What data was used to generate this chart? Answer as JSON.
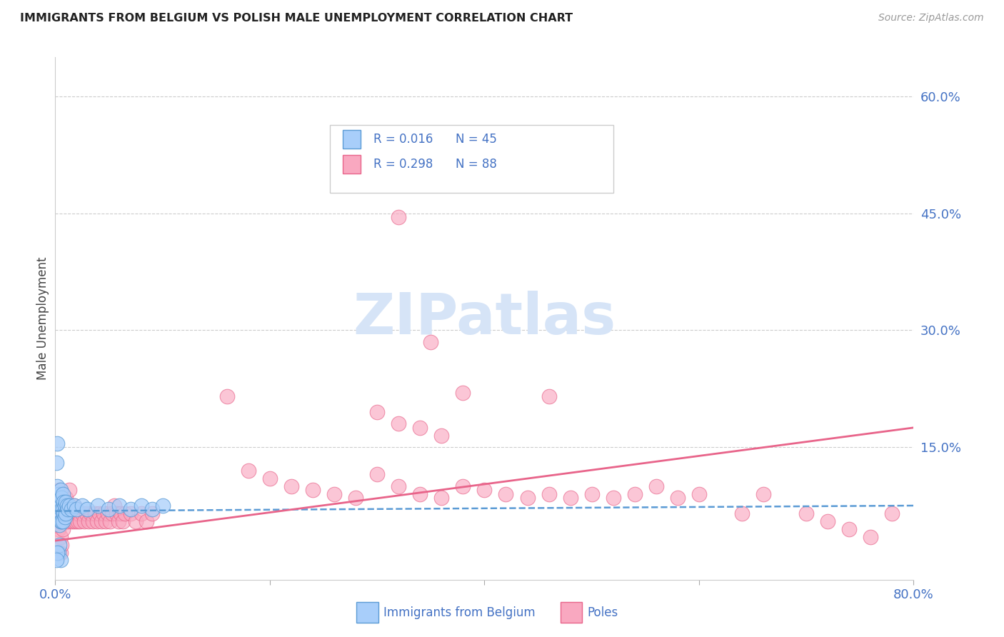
{
  "title": "IMMIGRANTS FROM BELGIUM VS POLISH MALE UNEMPLOYMENT CORRELATION CHART",
  "source": "Source: ZipAtlas.com",
  "ylabel": "Male Unemployment",
  "legend_label1": "Immigrants from Belgium",
  "legend_label2": "Poles",
  "xlim": [
    0.0,
    0.8
  ],
  "ylim": [
    -0.02,
    0.65
  ],
  "yticks": [
    0.15,
    0.3,
    0.45,
    0.6
  ],
  "ytick_labels": [
    "15.0%",
    "30.0%",
    "45.0%",
    "60.0%"
  ],
  "xticks": [
    0.0,
    0.2,
    0.4,
    0.6,
    0.8
  ],
  "xtick_labels": [
    "0.0%",
    "",
    "",
    "",
    "80.0%"
  ],
  "color_blue": "#A8CEFA",
  "color_pink": "#F9A8C0",
  "color_line_blue": "#5B9BD5",
  "color_line_pink": "#E8648A",
  "color_axis_label": "#4472C4",
  "watermark_color": "#D6E4F7",
  "blue_points": [
    [
      0.001,
      0.13
    ],
    [
      0.002,
      0.1
    ],
    [
      0.002,
      0.085
    ],
    [
      0.003,
      0.09
    ],
    [
      0.003,
      0.075
    ],
    [
      0.003,
      0.06
    ],
    [
      0.004,
      0.08
    ],
    [
      0.004,
      0.065
    ],
    [
      0.004,
      0.05
    ],
    [
      0.005,
      0.095
    ],
    [
      0.005,
      0.075
    ],
    [
      0.005,
      0.055
    ],
    [
      0.006,
      0.085
    ],
    [
      0.006,
      0.07
    ],
    [
      0.006,
      0.055
    ],
    [
      0.007,
      0.09
    ],
    [
      0.007,
      0.07
    ],
    [
      0.007,
      0.055
    ],
    [
      0.008,
      0.08
    ],
    [
      0.008,
      0.065
    ],
    [
      0.009,
      0.075
    ],
    [
      0.009,
      0.06
    ],
    [
      0.01,
      0.08
    ],
    [
      0.01,
      0.065
    ],
    [
      0.011,
      0.075
    ],
    [
      0.012,
      0.07
    ],
    [
      0.013,
      0.075
    ],
    [
      0.015,
      0.07
    ],
    [
      0.018,
      0.075
    ],
    [
      0.02,
      0.07
    ],
    [
      0.025,
      0.075
    ],
    [
      0.03,
      0.07
    ],
    [
      0.04,
      0.075
    ],
    [
      0.05,
      0.07
    ],
    [
      0.06,
      0.075
    ],
    [
      0.07,
      0.07
    ],
    [
      0.08,
      0.075
    ],
    [
      0.09,
      0.07
    ],
    [
      0.1,
      0.075
    ],
    [
      0.003,
      0.015
    ],
    [
      0.004,
      0.025
    ],
    [
      0.005,
      0.005
    ],
    [
      0.002,
      0.015
    ],
    [
      0.001,
      0.005
    ],
    [
      0.002,
      0.155
    ]
  ],
  "pink_points": [
    [
      0.002,
      0.08
    ],
    [
      0.003,
      0.065
    ],
    [
      0.003,
      0.045
    ],
    [
      0.004,
      0.095
    ],
    [
      0.005,
      0.075
    ],
    [
      0.005,
      0.055
    ],
    [
      0.005,
      0.035
    ],
    [
      0.006,
      0.08
    ],
    [
      0.007,
      0.065
    ],
    [
      0.007,
      0.045
    ],
    [
      0.008,
      0.07
    ],
    [
      0.009,
      0.06
    ],
    [
      0.01,
      0.085
    ],
    [
      0.011,
      0.055
    ],
    [
      0.012,
      0.065
    ],
    [
      0.013,
      0.095
    ],
    [
      0.015,
      0.055
    ],
    [
      0.016,
      0.065
    ],
    [
      0.017,
      0.055
    ],
    [
      0.018,
      0.075
    ],
    [
      0.019,
      0.055
    ],
    [
      0.02,
      0.065
    ],
    [
      0.021,
      0.055
    ],
    [
      0.022,
      0.065
    ],
    [
      0.023,
      0.055
    ],
    [
      0.025,
      0.065
    ],
    [
      0.027,
      0.055
    ],
    [
      0.029,
      0.065
    ],
    [
      0.031,
      0.055
    ],
    [
      0.033,
      0.065
    ],
    [
      0.035,
      0.055
    ],
    [
      0.037,
      0.065
    ],
    [
      0.039,
      0.055
    ],
    [
      0.041,
      0.065
    ],
    [
      0.043,
      0.055
    ],
    [
      0.045,
      0.065
    ],
    [
      0.047,
      0.055
    ],
    [
      0.049,
      0.065
    ],
    [
      0.051,
      0.055
    ],
    [
      0.053,
      0.065
    ],
    [
      0.055,
      0.075
    ],
    [
      0.057,
      0.065
    ],
    [
      0.059,
      0.055
    ],
    [
      0.061,
      0.065
    ],
    [
      0.063,
      0.055
    ],
    [
      0.065,
      0.065
    ],
    [
      0.07,
      0.065
    ],
    [
      0.075,
      0.055
    ],
    [
      0.08,
      0.065
    ],
    [
      0.085,
      0.055
    ],
    [
      0.09,
      0.065
    ],
    [
      0.16,
      0.215
    ],
    [
      0.18,
      0.12
    ],
    [
      0.2,
      0.11
    ],
    [
      0.22,
      0.1
    ],
    [
      0.24,
      0.095
    ],
    [
      0.26,
      0.09
    ],
    [
      0.28,
      0.085
    ],
    [
      0.3,
      0.115
    ],
    [
      0.32,
      0.1
    ],
    [
      0.34,
      0.09
    ],
    [
      0.36,
      0.085
    ],
    [
      0.38,
      0.1
    ],
    [
      0.4,
      0.095
    ],
    [
      0.42,
      0.09
    ],
    [
      0.44,
      0.085
    ],
    [
      0.46,
      0.09
    ],
    [
      0.48,
      0.085
    ],
    [
      0.5,
      0.09
    ],
    [
      0.52,
      0.085
    ],
    [
      0.54,
      0.09
    ],
    [
      0.56,
      0.1
    ],
    [
      0.58,
      0.085
    ],
    [
      0.6,
      0.09
    ],
    [
      0.64,
      0.065
    ],
    [
      0.66,
      0.09
    ],
    [
      0.7,
      0.065
    ],
    [
      0.72,
      0.055
    ],
    [
      0.74,
      0.045
    ],
    [
      0.76,
      0.035
    ],
    [
      0.78,
      0.065
    ],
    [
      0.28,
      0.5
    ],
    [
      0.32,
      0.445
    ],
    [
      0.35,
      0.285
    ],
    [
      0.38,
      0.22
    ],
    [
      0.46,
      0.215
    ],
    [
      0.3,
      0.195
    ],
    [
      0.32,
      0.18
    ],
    [
      0.34,
      0.175
    ],
    [
      0.36,
      0.165
    ],
    [
      0.005,
      0.015
    ],
    [
      0.006,
      0.025
    ]
  ],
  "trend_blue_start": 0.068,
  "trend_blue_end": 0.075,
  "trend_pink_start": 0.03,
  "trend_pink_end": 0.175
}
